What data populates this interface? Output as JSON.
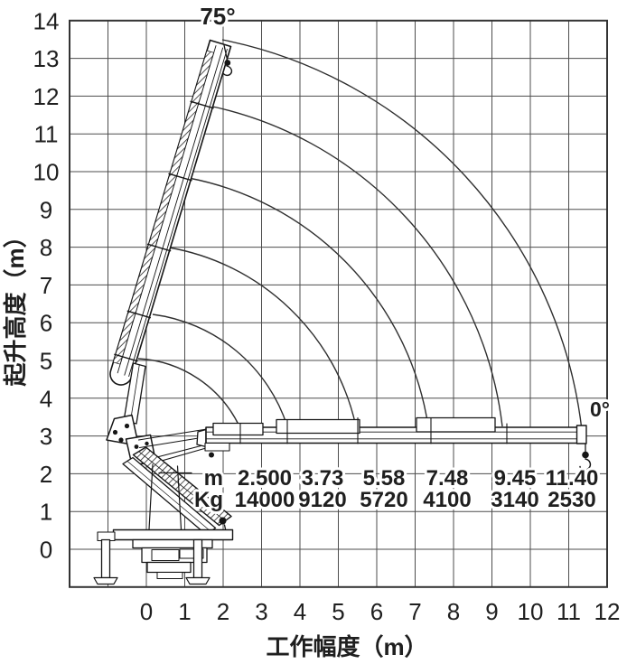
{
  "figure": {
    "background": "#ffffff",
    "ink_color": "#1f1f1f",
    "grid_color": "#4d4d4d"
  },
  "y_axis": {
    "title": "起升高度（m）",
    "ticks": [
      "14",
      "13",
      "12",
      "11",
      "10",
      "9",
      "8",
      "7",
      "6",
      "5",
      "4",
      "3",
      "2",
      "1",
      "0"
    ]
  },
  "x_axis": {
    "title": "工作幅度（m）",
    "ticks": [
      "0",
      "1",
      "2",
      "3",
      "4",
      "5",
      "6",
      "7",
      "8",
      "9",
      "10",
      "11",
      "12"
    ]
  },
  "angles": {
    "max_label": "75°",
    "min_label": "0°"
  },
  "load_table": {
    "radius_header": "m",
    "capacity_header": "Kg",
    "radius_values": [
      "2.500",
      "3.73",
      "5.58",
      "7.48",
      "9.45",
      "11.40"
    ],
    "capacity_values": [
      "14000",
      "9120",
      "5720",
      "4100",
      "3140",
      "2530"
    ]
  },
  "chart_data": {
    "type": "table",
    "title": "Crane working range / load chart",
    "xlabel": "工作幅度（m）",
    "ylabel": "起升高度（m）",
    "xlim": [
      -2,
      12
    ],
    "ylim": [
      -1,
      14
    ],
    "x_ticks": [
      0,
      1,
      2,
      3,
      4,
      5,
      6,
      7,
      8,
      9,
      10,
      11,
      12
    ],
    "y_ticks": [
      0,
      1,
      2,
      3,
      4,
      5,
      6,
      7,
      8,
      9,
      10,
      11,
      12,
      13,
      14
    ],
    "grid": true,
    "boom_angle_min_deg": 0,
    "boom_angle_max_deg": 75,
    "series": [
      {
        "name": "m",
        "values": [
          2.5,
          3.73,
          5.58,
          7.48,
          9.45,
          11.4
        ]
      },
      {
        "name": "Kg",
        "values": [
          14000,
          9120,
          5720,
          4100,
          3140,
          2530
        ]
      }
    ]
  }
}
